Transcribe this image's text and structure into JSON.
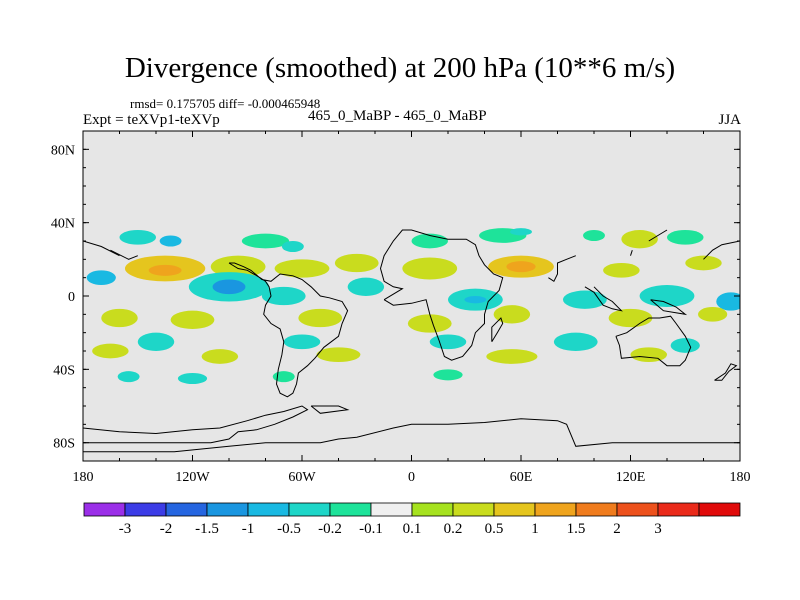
{
  "header": {
    "title": "Divergence (smoothed) at 200 hPa (10**6 m/s)",
    "stats": "rmsd= 0.175705 diff= -0.000465948",
    "experiment": "Expt = teXVp1-teXVp",
    "case": "465_0_MaBP - 465_0_MaBP",
    "season": "JJA"
  },
  "chart_data": {
    "type": "heatmap",
    "title": "Divergence (smoothed) at 200 hPa (10**6 m/s)",
    "xlabel": "",
    "ylabel": "",
    "xlim": [
      -180,
      180
    ],
    "ylim": [
      -90,
      90
    ],
    "x_ticks": [
      {
        "value": -180,
        "label": "180"
      },
      {
        "value": -120,
        "label": "120W"
      },
      {
        "value": -60,
        "label": "60W"
      },
      {
        "value": 0,
        "label": "0"
      },
      {
        "value": 60,
        "label": "60E"
      },
      {
        "value": 120,
        "label": "120E"
      },
      {
        "value": 180,
        "label": "180"
      }
    ],
    "y_ticks": [
      {
        "value": 80,
        "label": "80N"
      },
      {
        "value": 40,
        "label": "40N"
      },
      {
        "value": 0,
        "label": "0"
      },
      {
        "value": -40,
        "label": "40S"
      },
      {
        "value": -80,
        "label": "80S"
      }
    ],
    "background_color": "#e6e6e6",
    "colorbar": {
      "colors": [
        "#9b2fe8",
        "#3c3ce6",
        "#2565e0",
        "#1a96e0",
        "#19b9e2",
        "#1ed6c8",
        "#1ee39a",
        "#f0f0f0",
        "#a6e21f",
        "#c9dc1e",
        "#e5c51e",
        "#efa41d",
        "#f07c1d",
        "#ed511c",
        "#ea2a1a",
        "#e00a0a"
      ],
      "labels": [
        "-3",
        "-2",
        "-1.5",
        "-1",
        "-0.5",
        "-0.2",
        "-0.1",
        "0.1",
        "0.2",
        "0.5",
        "1",
        "1.5",
        "2",
        "3"
      ]
    },
    "features": [
      {
        "lon": -150,
        "lat": 32,
        "rx": 10,
        "ry": 4,
        "level": 5
      },
      {
        "lon": -132,
        "lat": 30,
        "rx": 6,
        "ry": 3,
        "level": 4
      },
      {
        "lon": -80,
        "lat": 30,
        "rx": 13,
        "ry": 4,
        "level": 6
      },
      {
        "lon": -65,
        "lat": 27,
        "rx": 6,
        "ry": 3,
        "level": 5
      },
      {
        "lon": 10,
        "lat": 30,
        "rx": 10,
        "ry": 4,
        "level": 6
      },
      {
        "lon": 50,
        "lat": 33,
        "rx": 13,
        "ry": 4,
        "level": 6
      },
      {
        "lon": 60,
        "lat": 35,
        "rx": 6,
        "ry": 2,
        "level": 5
      },
      {
        "lon": 100,
        "lat": 33,
        "rx": 6,
        "ry": 3,
        "level": 6
      },
      {
        "lon": 125,
        "lat": 31,
        "rx": 10,
        "ry": 5,
        "level": 9
      },
      {
        "lon": 150,
        "lat": 32,
        "rx": 10,
        "ry": 4,
        "level": 6
      },
      {
        "lon": -135,
        "lat": 15,
        "rx": 22,
        "ry": 7,
        "level": 10
      },
      {
        "lon": -135,
        "lat": 14,
        "rx": 9,
        "ry": 3,
        "level": 11
      },
      {
        "lon": -95,
        "lat": 16,
        "rx": 15,
        "ry": 6,
        "level": 9
      },
      {
        "lon": -60,
        "lat": 15,
        "rx": 15,
        "ry": 5,
        "level": 9
      },
      {
        "lon": -30,
        "lat": 18,
        "rx": 12,
        "ry": 5,
        "level": 9
      },
      {
        "lon": 10,
        "lat": 15,
        "rx": 15,
        "ry": 6,
        "level": 9
      },
      {
        "lon": 60,
        "lat": 16,
        "rx": 18,
        "ry": 6,
        "level": 10
      },
      {
        "lon": 60,
        "lat": 16,
        "rx": 8,
        "ry": 3,
        "level": 11
      },
      {
        "lon": 115,
        "lat": 14,
        "rx": 10,
        "ry": 4,
        "level": 9
      },
      {
        "lon": 160,
        "lat": 18,
        "rx": 10,
        "ry": 4,
        "level": 9
      },
      {
        "lon": -170,
        "lat": 10,
        "rx": 8,
        "ry": 4,
        "level": 4
      },
      {
        "lon": -100,
        "lat": 5,
        "rx": 22,
        "ry": 8,
        "level": 5
      },
      {
        "lon": -100,
        "lat": 5,
        "rx": 9,
        "ry": 4,
        "level": 3
      },
      {
        "lon": -70,
        "lat": 0,
        "rx": 12,
        "ry": 5,
        "level": 5
      },
      {
        "lon": -25,
        "lat": 5,
        "rx": 10,
        "ry": 5,
        "level": 5
      },
      {
        "lon": 35,
        "lat": -2,
        "rx": 15,
        "ry": 6,
        "level": 5
      },
      {
        "lon": 35,
        "lat": -2,
        "rx": 6,
        "ry": 2,
        "level": 4
      },
      {
        "lon": 95,
        "lat": -2,
        "rx": 12,
        "ry": 5,
        "level": 5
      },
      {
        "lon": 140,
        "lat": 0,
        "rx": 15,
        "ry": 6,
        "level": 5
      },
      {
        "lon": 175,
        "lat": -3,
        "rx": 8,
        "ry": 5,
        "level": 4
      },
      {
        "lon": -160,
        "lat": -12,
        "rx": 10,
        "ry": 5,
        "level": 9
      },
      {
        "lon": -120,
        "lat": -13,
        "rx": 12,
        "ry": 5,
        "level": 9
      },
      {
        "lon": -50,
        "lat": -12,
        "rx": 12,
        "ry": 5,
        "level": 9
      },
      {
        "lon": 10,
        "lat": -15,
        "rx": 12,
        "ry": 5,
        "level": 9
      },
      {
        "lon": 55,
        "lat": -10,
        "rx": 10,
        "ry": 5,
        "level": 9
      },
      {
        "lon": 120,
        "lat": -12,
        "rx": 12,
        "ry": 5,
        "level": 9
      },
      {
        "lon": 165,
        "lat": -10,
        "rx": 8,
        "ry": 4,
        "level": 9
      },
      {
        "lon": -140,
        "lat": -25,
        "rx": 10,
        "ry": 5,
        "level": 5
      },
      {
        "lon": -60,
        "lat": -25,
        "rx": 10,
        "ry": 4,
        "level": 5
      },
      {
        "lon": 20,
        "lat": -25,
        "rx": 10,
        "ry": 4,
        "level": 5
      },
      {
        "lon": 90,
        "lat": -25,
        "rx": 12,
        "ry": 5,
        "level": 5
      },
      {
        "lon": 150,
        "lat": -27,
        "rx": 8,
        "ry": 4,
        "level": 5
      },
      {
        "lon": -165,
        "lat": -30,
        "rx": 10,
        "ry": 4,
        "level": 9
      },
      {
        "lon": -105,
        "lat": -33,
        "rx": 10,
        "ry": 4,
        "level": 9
      },
      {
        "lon": -40,
        "lat": -32,
        "rx": 12,
        "ry": 4,
        "level": 9
      },
      {
        "lon": 55,
        "lat": -33,
        "rx": 14,
        "ry": 4,
        "level": 9
      },
      {
        "lon": 130,
        "lat": -32,
        "rx": 10,
        "ry": 4,
        "level": 9
      },
      {
        "lon": -120,
        "lat": -45,
        "rx": 8,
        "ry": 3,
        "level": 5
      },
      {
        "lon": -70,
        "lat": -44,
        "rx": 6,
        "ry": 3,
        "level": 6
      },
      {
        "lon": 20,
        "lat": -43,
        "rx": 8,
        "ry": 3,
        "level": 6
      },
      {
        "lon": -155,
        "lat": -44,
        "rx": 6,
        "ry": 3,
        "level": 5
      }
    ],
    "coastlines": [
      [
        [
          -180,
          -72
        ],
        [
          -160,
          -74
        ],
        [
          -140,
          -75
        ],
        [
          -120,
          -73
        ],
        [
          -105,
          -72
        ],
        [
          -90,
          -68
        ],
        [
          -80,
          -65
        ],
        [
          -70,
          -63
        ],
        [
          -60,
          -60
        ],
        [
          -57,
          -62
        ],
        [
          -65,
          -66
        ],
        [
          -75,
          -70
        ],
        [
          -85,
          -73
        ],
        [
          -95,
          -74
        ],
        [
          -100,
          -78
        ],
        [
          -110,
          -80
        ],
        [
          -140,
          -80
        ],
        [
          -175,
          -80
        ],
        [
          -180,
          -80
        ]
      ],
      [
        [
          180,
          -80
        ],
        [
          140,
          -80
        ],
        [
          110,
          -80
        ],
        [
          90,
          -82
        ],
        [
          85,
          -70
        ],
        [
          80,
          -68
        ],
        [
          60,
          -67
        ],
        [
          40,
          -69
        ],
        [
          20,
          -70
        ],
        [
          0,
          -70
        ],
        [
          -10,
          -72
        ],
        [
          -30,
          -77
        ],
        [
          -40,
          -78
        ],
        [
          -50,
          -80
        ],
        [
          -60,
          -80
        ],
        [
          -70,
          -80
        ],
        [
          -80,
          -80
        ],
        [
          -100,
          -82
        ],
        [
          -130,
          -85
        ],
        [
          -180,
          -85
        ]
      ],
      [
        [
          -55,
          -60
        ],
        [
          -40,
          -60
        ],
        [
          -35,
          -62
        ],
        [
          -50,
          -64
        ],
        [
          -55,
          -60
        ]
      ],
      [
        [
          -165,
          25
        ],
        [
          -155,
          20
        ],
        [
          -150,
          22
        ]
      ],
      [
        [
          -100,
          18
        ],
        [
          -95,
          15
        ],
        [
          -90,
          14
        ],
        [
          -83,
          10
        ],
        [
          -80,
          8
        ],
        [
          -78,
          5
        ],
        [
          -77,
          0
        ],
        [
          -80,
          -5
        ],
        [
          -81,
          -10
        ],
        [
          -77,
          -15
        ],
        [
          -72,
          -18
        ],
        [
          -70,
          -25
        ],
        [
          -71,
          -32
        ],
        [
          -73,
          -40
        ],
        [
          -74,
          -48
        ],
        [
          -72,
          -53
        ],
        [
          -68,
          -55
        ],
        [
          -65,
          -53
        ],
        [
          -63,
          -48
        ],
        [
          -62,
          -42
        ],
        [
          -57,
          -38
        ],
        [
          -53,
          -34
        ],
        [
          -48,
          -28
        ],
        [
          -40,
          -22
        ],
        [
          -38,
          -15
        ],
        [
          -35,
          -8
        ],
        [
          -38,
          -3
        ],
        [
          -45,
          -1
        ],
        [
          -50,
          0
        ],
        [
          -55,
          5
        ],
        [
          -60,
          9
        ],
        [
          -65,
          11
        ],
        [
          -72,
          12
        ],
        [
          -77,
          8
        ],
        [
          -82,
          9
        ],
        [
          -88,
          14
        ],
        [
          -92,
          16
        ],
        [
          -97,
          18
        ],
        [
          -100,
          18
        ]
      ],
      [
        [
          -15,
          -2
        ],
        [
          -10,
          -5
        ],
        [
          0,
          -4
        ],
        [
          8,
          -2
        ],
        [
          10,
          -10
        ],
        [
          12,
          -16
        ],
        [
          15,
          -24
        ],
        [
          18,
          -33
        ],
        [
          22,
          -35
        ],
        [
          28,
          -33
        ],
        [
          33,
          -27
        ],
        [
          35,
          -20
        ],
        [
          40,
          -15
        ],
        [
          40,
          -10
        ],
        [
          42,
          -3
        ],
        [
          48,
          3
        ],
        [
          50,
          10
        ],
        [
          45,
          12
        ],
        [
          40,
          17
        ],
        [
          37,
          22
        ],
        [
          35,
          28
        ],
        [
          30,
          31
        ],
        [
          20,
          31
        ],
        [
          10,
          33
        ],
        [
          0,
          36
        ],
        [
          -5,
          36
        ],
        [
          -10,
          30
        ],
        [
          -15,
          22
        ],
        [
          -17,
          15
        ],
        [
          -15,
          8
        ],
        [
          -10,
          5
        ],
        [
          -5,
          4
        ],
        [
          -15,
          -2
        ]
      ],
      [
        [
          44,
          -25
        ],
        [
          47,
          -20
        ],
        [
          50,
          -15
        ],
        [
          49,
          -12
        ],
        [
          44,
          -17
        ],
        [
          44,
          -25
        ]
      ],
      [
        [
          95,
          5
        ],
        [
          100,
          2
        ],
        [
          105,
          -5
        ],
        [
          110,
          -7
        ],
        [
          115,
          -8
        ],
        [
          110,
          -3
        ],
        [
          105,
          0
        ],
        [
          100,
          5
        ]
      ],
      [
        [
          112,
          -22
        ],
        [
          114,
          -27
        ],
        [
          115,
          -34
        ],
        [
          125,
          -33
        ],
        [
          135,
          -34
        ],
        [
          140,
          -38
        ],
        [
          147,
          -38
        ],
        [
          150,
          -35
        ],
        [
          153,
          -28
        ],
        [
          150,
          -22
        ],
        [
          145,
          -15
        ],
        [
          142,
          -11
        ],
        [
          136,
          -12
        ],
        [
          130,
          -12
        ],
        [
          125,
          -15
        ],
        [
          118,
          -20
        ],
        [
          112,
          -22
        ]
      ],
      [
        [
          131,
          -2
        ],
        [
          138,
          -3
        ],
        [
          145,
          -6
        ],
        [
          150,
          -10
        ],
        [
          144,
          -9
        ],
        [
          138,
          -8
        ],
        [
          131,
          -2
        ]
      ],
      [
        [
          166,
          -46
        ],
        [
          172,
          -42
        ],
        [
          175,
          -37
        ],
        [
          178,
          -38
        ],
        [
          174,
          -41
        ],
        [
          170,
          -46
        ],
        [
          166,
          -46
        ]
      ],
      [
        [
          160,
          20
        ],
        [
          165,
          25
        ],
        [
          170,
          28
        ],
        [
          180,
          30
        ]
      ],
      [
        [
          -180,
          30
        ],
        [
          -170,
          27
        ],
        [
          -160,
          22
        ]
      ],
      [
        [
          130,
          30
        ],
        [
          135,
          33
        ],
        [
          140,
          36
        ]
      ],
      [
        [
          120,
          22
        ],
        [
          121,
          25
        ]
      ],
      [
        [
          75,
          10
        ],
        [
          78,
          8
        ],
        [
          80,
          12
        ],
        [
          80,
          18
        ],
        [
          85,
          20
        ],
        [
          90,
          22
        ]
      ]
    ]
  }
}
